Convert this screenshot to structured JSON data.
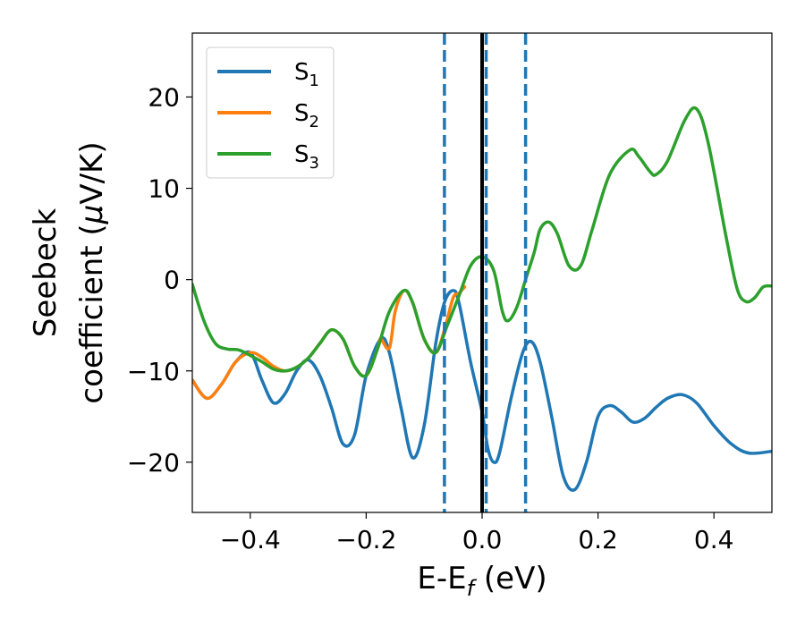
{
  "chart_data": {
    "type": "line",
    "title": "",
    "xlabel": {
      "main": "E-E",
      "sub": "f",
      "unit": " (eV)"
    },
    "ylabel": {
      "line1": "Seebeck",
      "line2": "coefficient  (",
      "mu": "μ",
      "unit": "V/K)"
    },
    "xlim": [
      -0.5,
      0.5
    ],
    "ylim": [
      -25.5,
      27
    ],
    "xticks": [
      -0.4,
      -0.2,
      0.0,
      0.2,
      0.4
    ],
    "xtick_labels": [
      "−0.4",
      "−0.2",
      "0.0",
      "0.2",
      "0.4"
    ],
    "yticks": [
      -20,
      -10,
      0,
      10,
      20
    ],
    "ytick_labels": [
      "−20",
      "−10",
      "0",
      "10",
      "20"
    ],
    "grid": false,
    "legend_position": "top-left",
    "vlines": [
      {
        "x": 0.0,
        "style": "solid",
        "color": "#000000"
      },
      {
        "x": -0.065,
        "style": "dashed",
        "color": "#1f77b4"
      },
      {
        "x": 0.007,
        "style": "dashed",
        "color": "#1f77b4"
      },
      {
        "x": 0.075,
        "style": "dashed",
        "color": "#1f77b4"
      }
    ],
    "series": [
      {
        "name": "S",
        "sub": "1",
        "color": "#1f77b4",
        "points": [
          [
            -0.5,
            -11
          ],
          [
            -0.475,
            -13
          ],
          [
            -0.45,
            -11.5
          ],
          [
            -0.425,
            -9
          ],
          [
            -0.4,
            -8
          ],
          [
            -0.38,
            -11
          ],
          [
            -0.36,
            -13.5
          ],
          [
            -0.34,
            -12.5
          ],
          [
            -0.32,
            -10
          ],
          [
            -0.3,
            -8.8
          ],
          [
            -0.28,
            -10.5
          ],
          [
            -0.26,
            -14
          ],
          [
            -0.24,
            -18
          ],
          [
            -0.22,
            -17
          ],
          [
            -0.2,
            -10.5
          ],
          [
            -0.175,
            -6.5
          ],
          [
            -0.16,
            -8
          ],
          [
            -0.14,
            -14
          ],
          [
            -0.12,
            -19.5
          ],
          [
            -0.1,
            -16
          ],
          [
            -0.08,
            -7
          ],
          [
            -0.065,
            -2.5
          ],
          [
            -0.05,
            -1.2
          ],
          [
            -0.04,
            -2.5
          ],
          [
            -0.02,
            -9
          ],
          [
            0.0,
            -14.5
          ],
          [
            0.01,
            -18.5
          ],
          [
            0.02,
            -20
          ],
          [
            0.03,
            -19
          ],
          [
            0.05,
            -13
          ],
          [
            0.07,
            -8
          ],
          [
            0.085,
            -6.8
          ],
          [
            0.1,
            -9
          ],
          [
            0.12,
            -15
          ],
          [
            0.14,
            -21.5
          ],
          [
            0.16,
            -23
          ],
          [
            0.18,
            -20
          ],
          [
            0.2,
            -15
          ],
          [
            0.22,
            -13.8
          ],
          [
            0.24,
            -14.5
          ],
          [
            0.26,
            -15.6
          ],
          [
            0.28,
            -15.2
          ],
          [
            0.3,
            -14
          ],
          [
            0.32,
            -13
          ],
          [
            0.345,
            -12.6
          ],
          [
            0.37,
            -13.5
          ],
          [
            0.4,
            -16
          ],
          [
            0.43,
            -18
          ],
          [
            0.46,
            -19
          ],
          [
            0.5,
            -18.8
          ]
        ]
      },
      {
        "name": "S",
        "sub": "2",
        "color": "#ff7f0e",
        "points": [
          [
            -0.5,
            -11
          ],
          [
            -0.475,
            -13
          ],
          [
            -0.45,
            -11.5
          ],
          [
            -0.425,
            -9
          ],
          [
            -0.4,
            -8
          ],
          [
            -0.38,
            -8.5
          ],
          [
            -0.36,
            -9.5
          ],
          [
            -0.34,
            -10
          ],
          [
            -0.32,
            -9.6
          ],
          [
            -0.3,
            -8.6
          ],
          [
            -0.28,
            -7
          ],
          [
            -0.26,
            -5.5
          ],
          [
            -0.24,
            -6.5
          ],
          [
            -0.22,
            -9.5
          ],
          [
            -0.2,
            -10.5
          ],
          [
            -0.18,
            -7.5
          ],
          [
            -0.175,
            -6.5
          ],
          [
            -0.16,
            -7.5
          ],
          [
            -0.15,
            -3.5
          ],
          [
            -0.135,
            -1.2
          ],
          [
            -0.12,
            -2.5
          ],
          [
            -0.1,
            -6.5
          ],
          [
            -0.08,
            -8
          ],
          [
            -0.065,
            -5.5
          ],
          [
            -0.05,
            -2
          ],
          [
            -0.04,
            -1.5
          ],
          [
            -0.03,
            -0.8
          ]
        ]
      },
      {
        "name": "S",
        "sub": "3",
        "color": "#2ca02c",
        "points": [
          [
            -0.5,
            -0.5
          ],
          [
            -0.48,
            -4.5
          ],
          [
            -0.46,
            -7
          ],
          [
            -0.44,
            -7.6
          ],
          [
            -0.42,
            -7.7
          ],
          [
            -0.4,
            -8.3
          ],
          [
            -0.38,
            -9
          ],
          [
            -0.36,
            -9.8
          ],
          [
            -0.34,
            -10
          ],
          [
            -0.32,
            -9.6
          ],
          [
            -0.3,
            -8.6
          ],
          [
            -0.28,
            -7
          ],
          [
            -0.26,
            -5.5
          ],
          [
            -0.24,
            -6.5
          ],
          [
            -0.22,
            -9.5
          ],
          [
            -0.2,
            -10.5
          ],
          [
            -0.18,
            -7.5
          ],
          [
            -0.16,
            -3.5
          ],
          [
            -0.135,
            -1.2
          ],
          [
            -0.12,
            -2.5
          ],
          [
            -0.1,
            -6.5
          ],
          [
            -0.08,
            -8
          ],
          [
            -0.06,
            -5
          ],
          [
            -0.04,
            -1.8
          ],
          [
            -0.02,
            1.5
          ],
          [
            0.0,
            2.5
          ],
          [
            0.02,
            1
          ],
          [
            0.035,
            -3.5
          ],
          [
            0.045,
            -4.5
          ],
          [
            0.06,
            -3
          ],
          [
            0.075,
            0
          ],
          [
            0.09,
            3
          ],
          [
            0.1,
            5.5
          ],
          [
            0.115,
            6.3
          ],
          [
            0.13,
            5
          ],
          [
            0.15,
            1.5
          ],
          [
            0.17,
            1.5
          ],
          [
            0.19,
            5.5
          ],
          [
            0.22,
            11.5
          ],
          [
            0.255,
            14.2
          ],
          [
            0.27,
            13.5
          ],
          [
            0.29,
            11.8
          ],
          [
            0.3,
            11.5
          ],
          [
            0.32,
            13
          ],
          [
            0.35,
            17.5
          ],
          [
            0.37,
            18.7
          ],
          [
            0.39,
            15
          ],
          [
            0.42,
            5
          ],
          [
            0.44,
            -1
          ],
          [
            0.455,
            -2.4
          ],
          [
            0.47,
            -2
          ],
          [
            0.485,
            -0.8
          ],
          [
            0.5,
            -0.7
          ]
        ]
      }
    ]
  }
}
